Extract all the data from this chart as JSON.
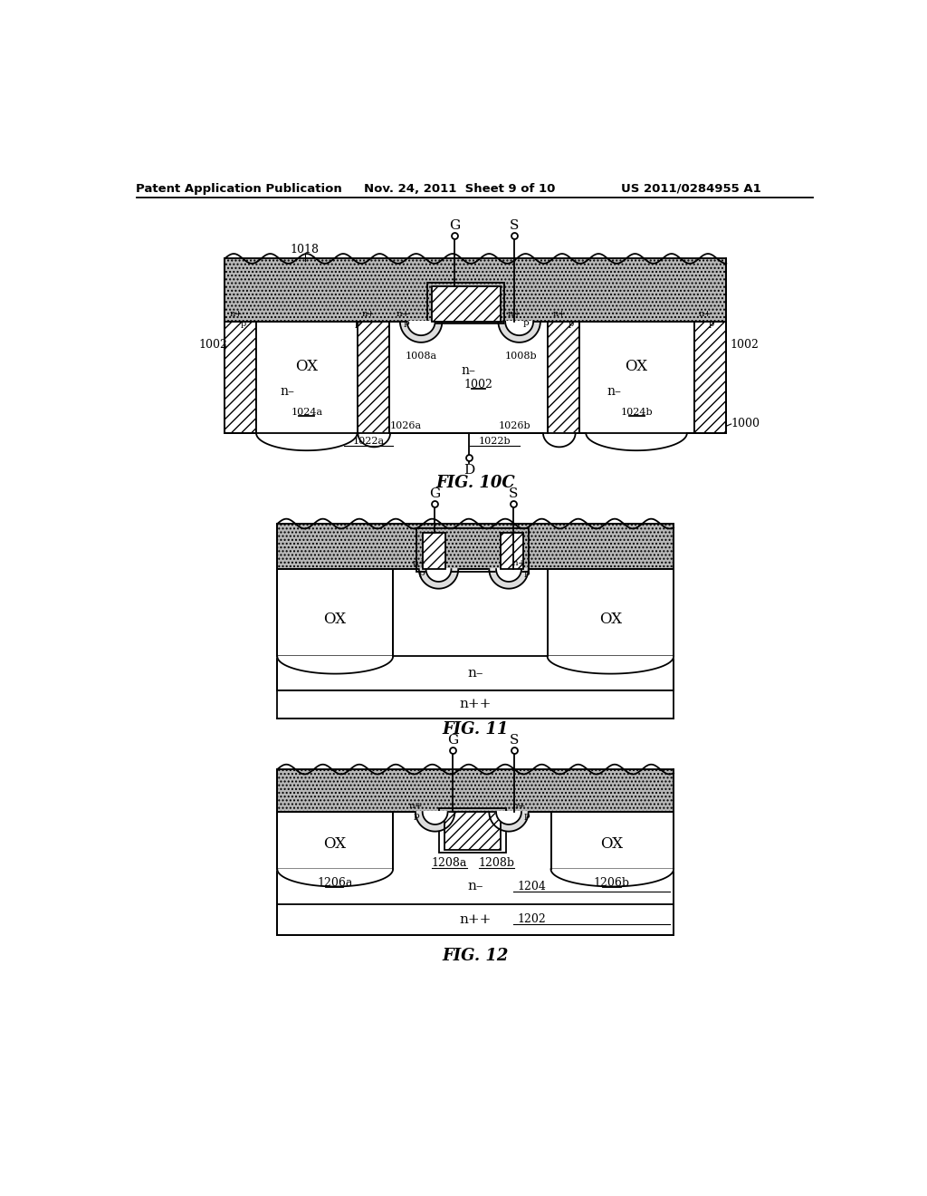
{
  "title_left": "Patent Application Publication",
  "title_mid": "Nov. 24, 2011  Sheet 9 of 10",
  "title_right": "US 2011/0284955 A1",
  "fig10c_label": "FIG. 10C",
  "fig11_label": "FIG. 11",
  "fig12_label": "FIG. 12",
  "bg_color": "#ffffff",
  "lc": "#000000",
  "stipple_color": "#b8b8b8",
  "lw": 1.3
}
